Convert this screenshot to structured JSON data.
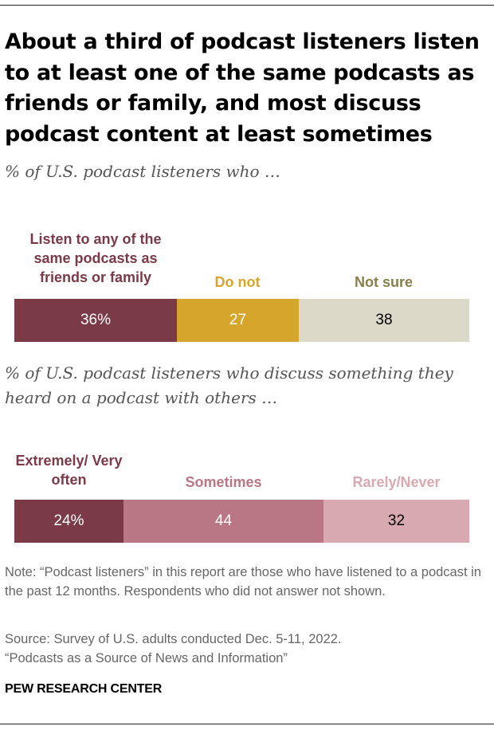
{
  "title": "About a third of podcast listeners listen to at least one of the same podcasts as friends or family, and most discuss podcast content at least sometimes",
  "note": "Note: “Podcast listeners” in this report are those who have listened to a podcast in the past 12 months. Respondents who did not answer not shown.",
  "source": "Source: Survey of U.S. adults conducted Dec. 5-11, 2022.",
  "report": "“Podcasts as a Source of News and Information”",
  "brand": "PEW RESEARCH CENTER",
  "chart_data": [
    {
      "type": "bar",
      "orientation": "horizontal-stacked",
      "subtitle": "% of U.S. podcast listeners who …",
      "categories": [
        "Listen to any of the same podcasts as friends or family",
        "Do not",
        "Not sure"
      ],
      "values": [
        36,
        27,
        38
      ],
      "value_labels": [
        "36%",
        "27",
        "38"
      ],
      "colors": [
        "#7a3a48",
        "#d6a52c",
        "#ddd9c8"
      ],
      "label_colors": [
        "#7a3a48",
        "#d6a52c",
        "#8a7f4a"
      ],
      "value_text_colors": [
        "#ffffff",
        "#ffffff",
        "#000000"
      ]
    },
    {
      "type": "bar",
      "orientation": "horizontal-stacked",
      "subtitle": "% of U.S. podcast listeners who discuss something they heard on a podcast with others …",
      "categories": [
        "Extremely/ Very often",
        "Sometimes",
        "Rarely/Never"
      ],
      "values": [
        24,
        44,
        32
      ],
      "value_labels": [
        "24%",
        "44",
        "32"
      ],
      "colors": [
        "#7a3a48",
        "#b97684",
        "#d8a9b1"
      ],
      "label_colors": [
        "#7a3a48",
        "#b97684",
        "#d8a9b1"
      ],
      "value_text_colors": [
        "#ffffff",
        "#ffffff",
        "#000000"
      ]
    }
  ]
}
